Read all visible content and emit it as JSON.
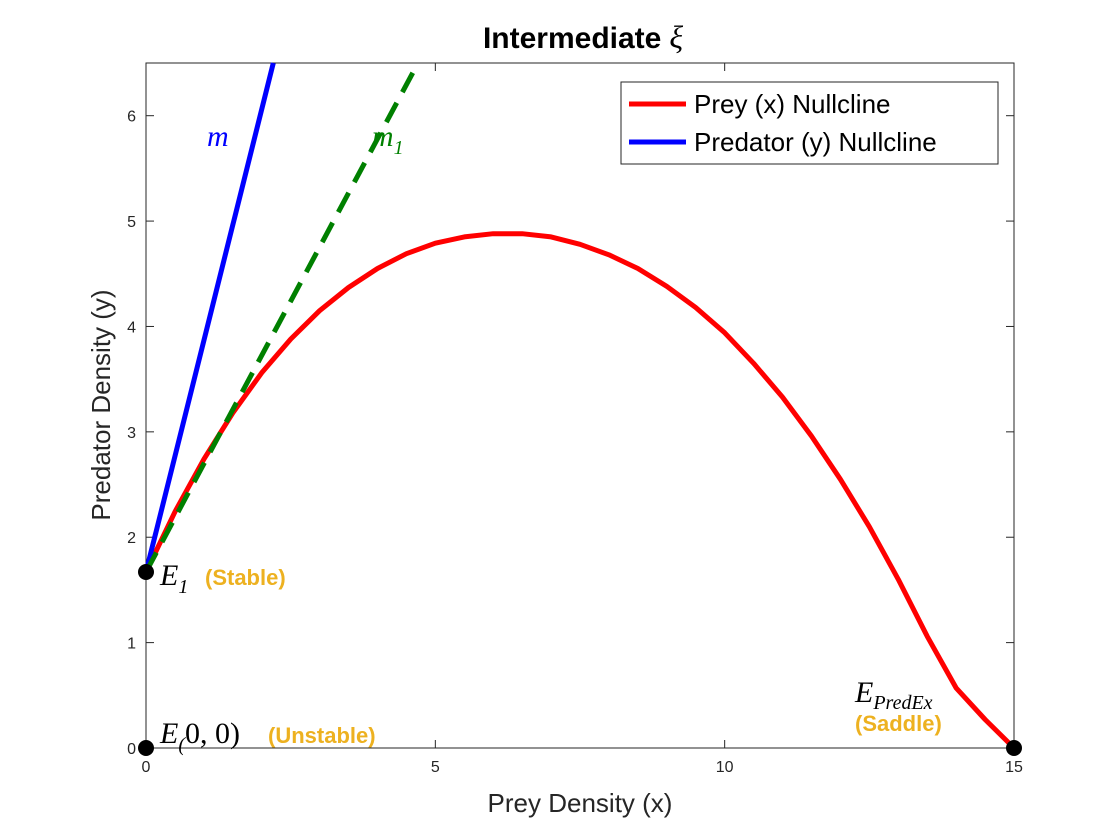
{
  "chart_data": {
    "type": "line",
    "title": "Intermediate",
    "title_symbol": "ξ",
    "xlabel": "Prey Density (x)",
    "ylabel": "Predator Density (y)",
    "xlim": [
      0,
      15
    ],
    "ylim": [
      0,
      6.5
    ],
    "xticks": [
      0,
      5,
      10,
      15
    ],
    "yticks": [
      0,
      1,
      2,
      3,
      4,
      5,
      6
    ],
    "grid": false,
    "legend_position": "top-right",
    "series": [
      {
        "name": "Prey (x) Nullcline",
        "color": "#FF0000",
        "style": "solid",
        "x": [
          0,
          0.5,
          1,
          1.5,
          2,
          2.5,
          3,
          3.5,
          4,
          4.5,
          5,
          5.5,
          6,
          6.5,
          7,
          7.5,
          8,
          8.5,
          9,
          9.5,
          10,
          10.5,
          11,
          11.5,
          12,
          12.5,
          13,
          13.5,
          14,
          14.5,
          15
        ],
        "y": [
          1.67,
          2.24,
          2.74,
          3.18,
          3.56,
          3.88,
          4.15,
          4.37,
          4.55,
          4.69,
          4.79,
          4.85,
          4.88,
          4.88,
          4.85,
          4.78,
          4.68,
          4.55,
          4.38,
          4.18,
          3.94,
          3.65,
          3.33,
          2.96,
          2.55,
          2.1,
          1.6,
          1.06,
          0.57,
          0.27,
          0
        ]
      },
      {
        "name": "Predator (y) Nullcline",
        "color": "#0000FF",
        "style": "solid",
        "x": [
          0,
          2.2
        ],
        "y": [
          1.67,
          6.5
        ]
      },
      {
        "color": "#008000",
        "style": "dashed",
        "x": [
          0,
          4.7
        ],
        "y": [
          1.67,
          6.5
        ]
      }
    ],
    "line_labels": [
      {
        "text": "m",
        "subscript": "",
        "color": "#0000FF",
        "x": 1.4,
        "y": 5.75
      },
      {
        "text": "m",
        "subscript": "1",
        "color": "#008000",
        "x": 4.25,
        "y": 5.75
      }
    ],
    "points": [
      {
        "x": 0,
        "y": 1.67,
        "label": "E",
        "subscript": "1",
        "paren": "",
        "stability": "(Stable)"
      },
      {
        "x": 0,
        "y": 0,
        "label": "E",
        "subscript": "(",
        "paren": "0, 0)",
        "stability": "(Unstable)"
      },
      {
        "x": 15,
        "y": 0,
        "label": "E",
        "subscript": "PredEx",
        "paren": "",
        "stability": "(Saddle)"
      }
    ]
  }
}
